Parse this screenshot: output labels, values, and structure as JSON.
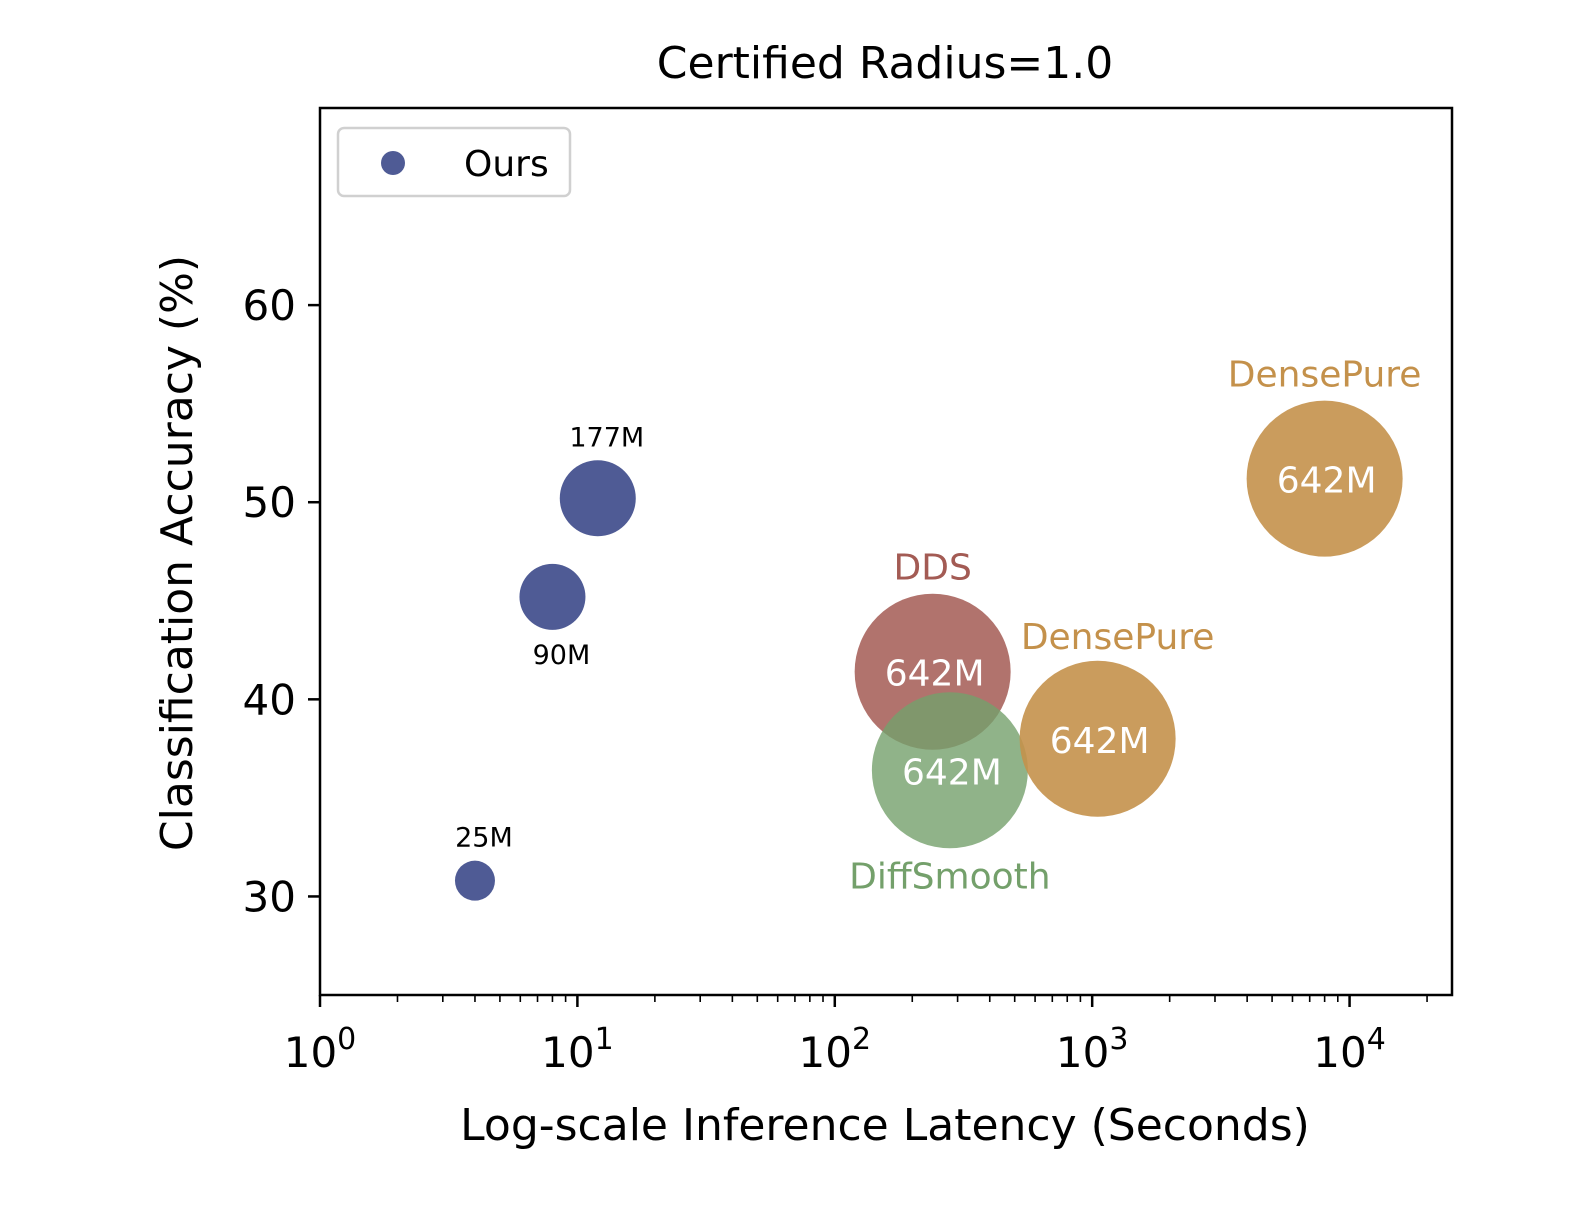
{
  "chart_data": {
    "type": "scatter",
    "title": "Certified Radius=1.0",
    "xlabel": "Log-scale Inference Latency (Seconds)",
    "ylabel": "Classification Accuracy (%)",
    "xscale": "log",
    "xlim": [
      1,
      25000
    ],
    "ylim": [
      25,
      70
    ],
    "x_ticks": [
      {
        "value": 1,
        "base": "10",
        "exp": "0"
      },
      {
        "value": 10,
        "base": "10",
        "exp": "1"
      },
      {
        "value": 100,
        "base": "10",
        "exp": "2"
      },
      {
        "value": 1000,
        "base": "10",
        "exp": "3"
      },
      {
        "value": 10000,
        "base": "10",
        "exp": "4"
      }
    ],
    "y_ticks": [
      30,
      40,
      50,
      60
    ],
    "legend": {
      "position": "top-left",
      "entries": [
        {
          "label": "Ours",
          "color": "#4f5b95"
        }
      ]
    },
    "grid": false,
    "series": [
      {
        "name": "Ours",
        "color": "#4f5b95",
        "points": [
          {
            "x": 4,
            "y": 30.8,
            "size_label": "25M",
            "label_pos": "above"
          },
          {
            "x": 8,
            "y": 45.2,
            "size_label": "90M",
            "label_pos": "below"
          },
          {
            "x": 12,
            "y": 50.2,
            "size_label": "177M",
            "label_pos": "above"
          }
        ]
      }
    ],
    "baselines": [
      {
        "name": "DDS",
        "color": "#a35b54",
        "opacity": 0.85,
        "x": 240,
        "y": 41.4,
        "size_label": "642M",
        "name_pos": "above"
      },
      {
        "name": "DiffSmooth",
        "color": "#74a06b",
        "opacity": 0.8,
        "x": 280,
        "y": 36.4,
        "size_label": "642M",
        "name_pos": "below"
      },
      {
        "name": "DensePure",
        "color": "#c4914b",
        "opacity": 0.9,
        "x": 1050,
        "y": 38.0,
        "size_label": "642M",
        "name_pos": "above-right"
      },
      {
        "name": "DensePure",
        "color": "#c4914b",
        "opacity": 0.9,
        "x": 8000,
        "y": 51.2,
        "size_label": "642M",
        "name_pos": "above"
      }
    ],
    "size_scale": {
      "25M": 20,
      "90M": 33,
      "177M": 38,
      "642M": 78
    }
  }
}
